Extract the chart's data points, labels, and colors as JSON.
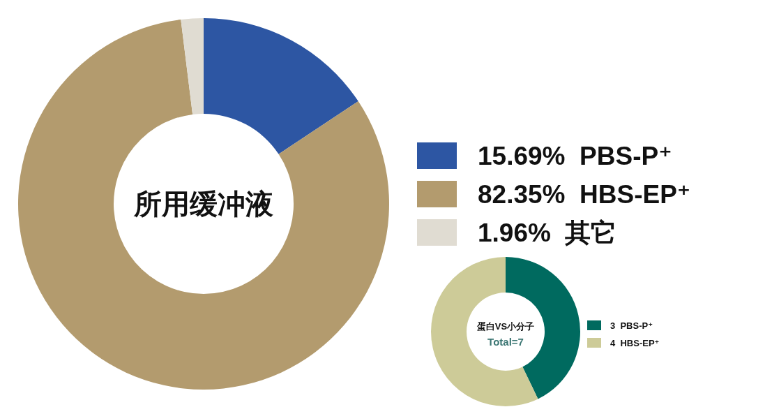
{
  "chart_data": [
    {
      "type": "donut",
      "title": "所用缓冲液",
      "categories": [
        "PBS-P⁺",
        "HBS-EP⁺",
        "其它"
      ],
      "values": [
        15.69,
        82.35,
        1.96
      ],
      "value_labels": [
        "15.69%",
        "82.35%",
        "1.96%"
      ],
      "colors": [
        "#2d56a3",
        "#b39b6e",
        "#e0dcd2"
      ],
      "legend": "right"
    },
    {
      "type": "donut",
      "title": "蛋白VS小分子",
      "subtitle": "Total=7",
      "categories": [
        "PBS-P⁺",
        "HBS-EP⁺"
      ],
      "values": [
        3,
        4
      ],
      "value_labels": [
        "3",
        "4"
      ],
      "colors": [
        "#006a5f",
        "#cdcb98"
      ],
      "legend": "right"
    }
  ]
}
